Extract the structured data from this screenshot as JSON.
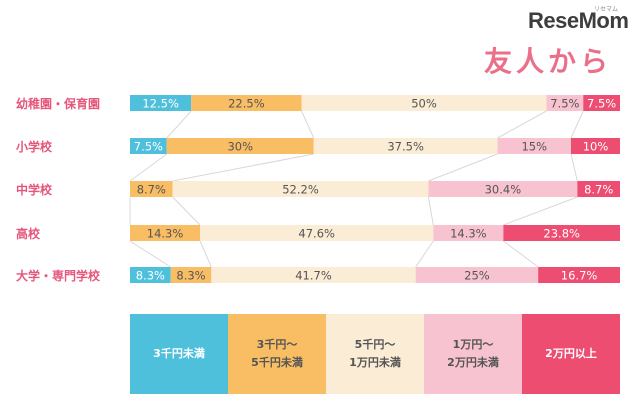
{
  "brand": {
    "logo": "ReseMom",
    "logo_sub": "リセマム"
  },
  "colors": {
    "c1": "#4ec0db",
    "c2": "#f9be64",
    "c3": "#fbecd6",
    "c4": "#f8c3d0",
    "c5": "#ec4d71",
    "label_pink": "#e5567a",
    "connector": "#d8d8d8"
  },
  "chart_data": {
    "type": "bar",
    "stacked": true,
    "orientation": "horizontal",
    "percent": true,
    "title": "友人から",
    "xlim": [
      0,
      100
    ],
    "categories": [
      "幼稚園・保育園",
      "小学校",
      "中学校",
      "高校",
      "大学・専門学校"
    ],
    "series": [
      {
        "name": "3千円未満",
        "values": [
          12.5,
          7.5,
          0,
          0,
          8.3
        ],
        "labels": [
          "12.5%",
          "7.5%",
          "",
          "",
          "8.3%"
        ]
      },
      {
        "name": "3千円～5千円未満",
        "values": [
          22.5,
          30,
          8.7,
          14.3,
          8.3
        ],
        "labels": [
          "22.5%",
          "30%",
          "8.7%",
          "14.3%",
          "8.3%"
        ]
      },
      {
        "name": "5千円～1万円未満",
        "values": [
          50,
          37.5,
          52.2,
          47.6,
          41.7
        ],
        "labels": [
          "50%",
          "37.5%",
          "52.2%",
          "47.6%",
          "41.7%"
        ]
      },
      {
        "name": "1万円～2万円未満",
        "values": [
          7.5,
          15,
          30.4,
          14.3,
          25
        ],
        "labels": [
          "7.5%",
          "15%",
          "30.4%",
          "14.3%",
          "25%"
        ]
      },
      {
        "name": "2万円以上",
        "values": [
          7.5,
          10,
          8.7,
          23.8,
          16.7
        ],
        "labels": [
          "7.5%",
          "10%",
          "8.7%",
          "23.8%",
          "16.7%"
        ]
      }
    ],
    "legend": {
      "position": "bottom",
      "labels": [
        "3千円未満",
        "3千円～\n5千円未満",
        "5千円～\n1万円未満",
        "1万円～\n2万円未満",
        "2万円以上"
      ]
    }
  }
}
